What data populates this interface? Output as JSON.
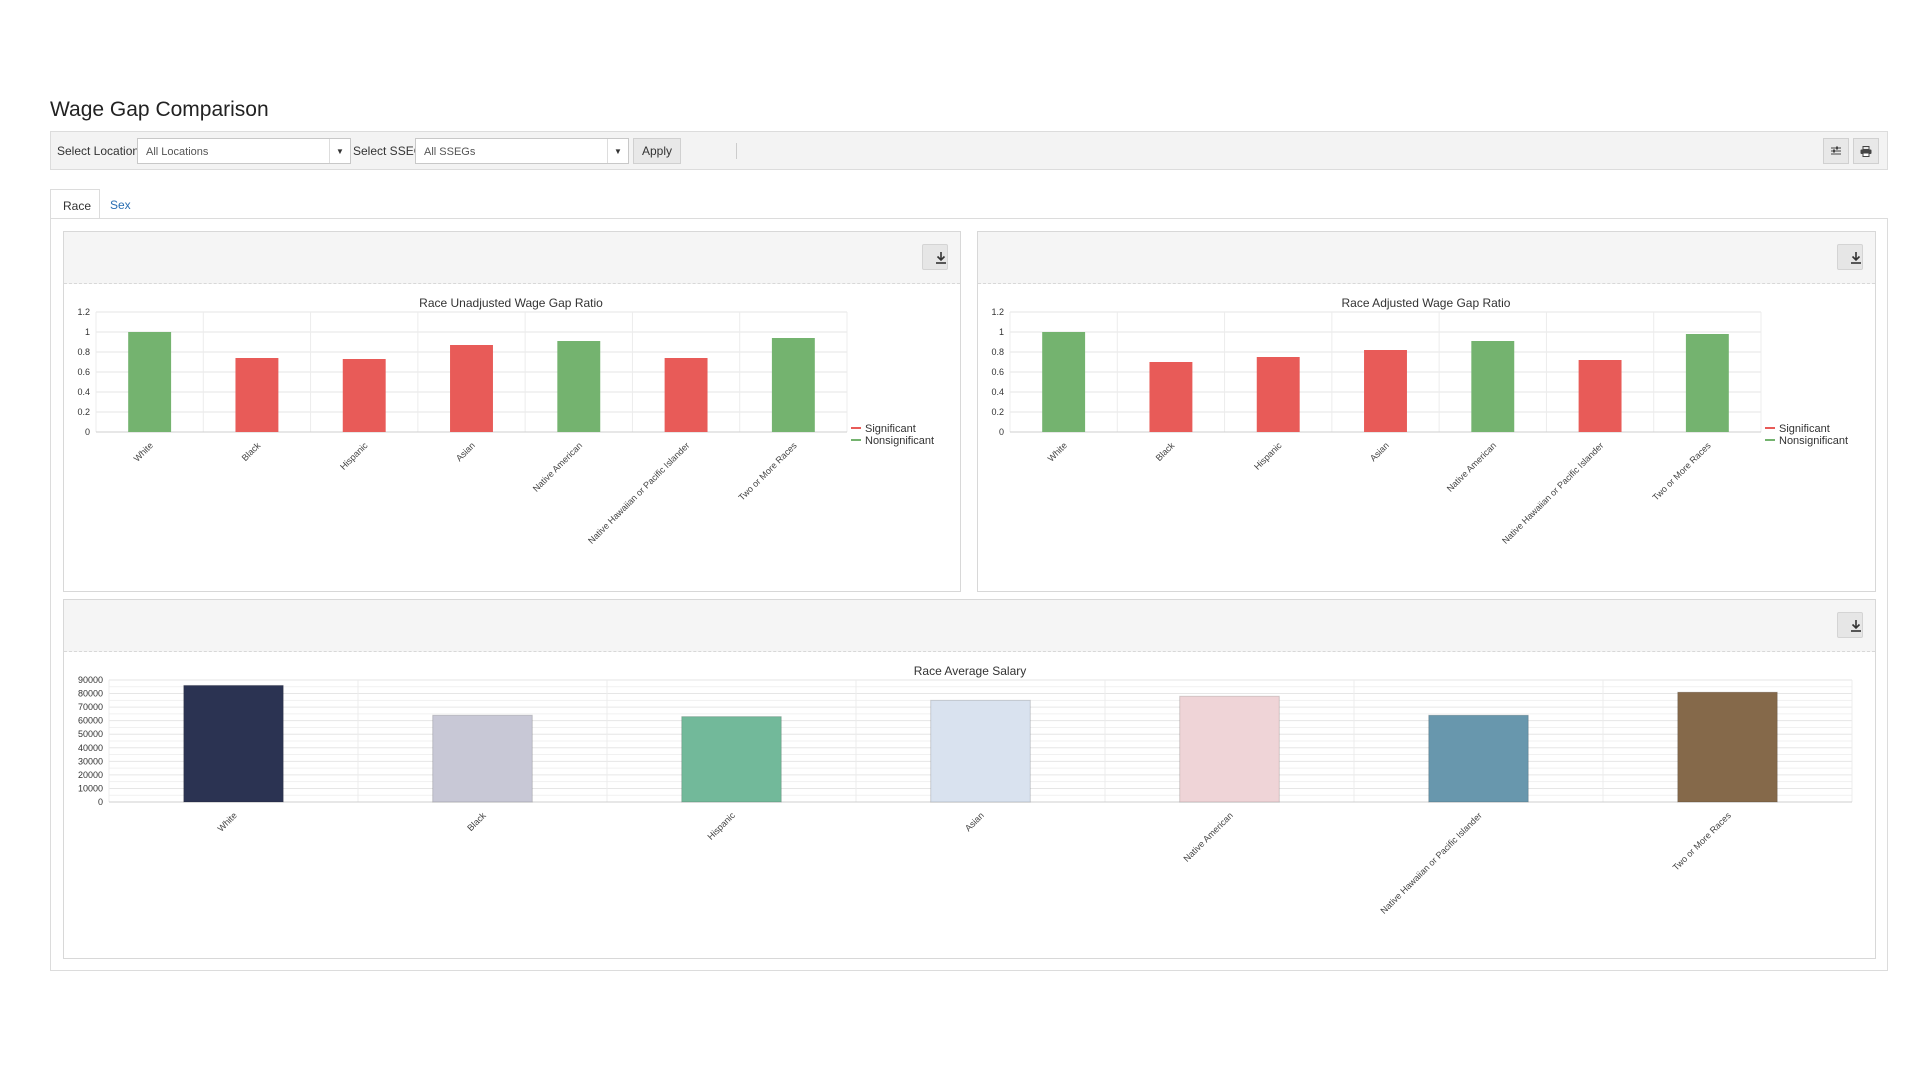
{
  "page": {
    "title": "Wage Gap Comparison"
  },
  "toolbar": {
    "location_label": "Select Location",
    "location_value": "All Locations",
    "sseg_label": "Select SSEG",
    "sseg_value": "All SSEGs",
    "apply_label": "Apply"
  },
  "tabs": [
    {
      "label": "Race",
      "active": true
    },
    {
      "label": "Sex",
      "active": false
    }
  ],
  "colors": {
    "significant": "#e85b58",
    "nonsignificant": "#74b36f"
  },
  "chart_data": [
    {
      "type": "bar",
      "title": "Race Unadjusted Wage Gap Ratio",
      "categories": [
        "White",
        "Black",
        "Hispanic",
        "Asian",
        "Native American",
        "Native Hawaiian or Pacific Islander",
        "Two or More Races"
      ],
      "values": [
        1.0,
        0.74,
        0.73,
        0.87,
        0.91,
        0.74,
        0.94
      ],
      "status": [
        "Nonsignificant",
        "Significant",
        "Significant",
        "Significant",
        "Nonsignificant",
        "Significant",
        "Nonsignificant"
      ],
      "yticks": [
        "0",
        "0.2",
        "0.4",
        "0.6",
        "0.8",
        "1",
        "1.2"
      ],
      "ylim": [
        0,
        1.2
      ],
      "legend": [
        "Significant",
        "Nonsignificant"
      ],
      "xlabel": "",
      "ylabel": ""
    },
    {
      "type": "bar",
      "title": "Race Adjusted Wage Gap Ratio",
      "categories": [
        "White",
        "Black",
        "Hispanic",
        "Asian",
        "Native American",
        "Native Hawaiian or Pacific Islander",
        "Two or More Races"
      ],
      "values": [
        1.0,
        0.7,
        0.75,
        0.82,
        0.91,
        0.72,
        0.98
      ],
      "status": [
        "Nonsignificant",
        "Significant",
        "Significant",
        "Significant",
        "Nonsignificant",
        "Significant",
        "Nonsignificant"
      ],
      "yticks": [
        "0",
        "0.2",
        "0.4",
        "0.6",
        "0.8",
        "1",
        "1.2"
      ],
      "ylim": [
        0,
        1.2
      ],
      "legend": [
        "Significant",
        "Nonsignificant"
      ],
      "xlabel": "",
      "ylabel": ""
    },
    {
      "type": "bar",
      "title": "Race Average Salary",
      "categories": [
        "White",
        "Black",
        "Hispanic",
        "Asian",
        "Native American",
        "Native Hawaiian or Pacific Islander",
        "Two or More Races"
      ],
      "values": [
        86000,
        64000,
        63000,
        75000,
        78000,
        64000,
        81000
      ],
      "bar_colors": [
        "#2b3352",
        "#c8c8d6",
        "#72b99a",
        "#d9e2ef",
        "#efd4d7",
        "#6897ad",
        "#85694a"
      ],
      "yticks": [
        "0",
        "10000",
        "20000",
        "30000",
        "40000",
        "50000",
        "60000",
        "70000",
        "80000",
        "90000"
      ],
      "ylim": [
        0,
        90000
      ],
      "xlabel": "",
      "ylabel": ""
    }
  ]
}
